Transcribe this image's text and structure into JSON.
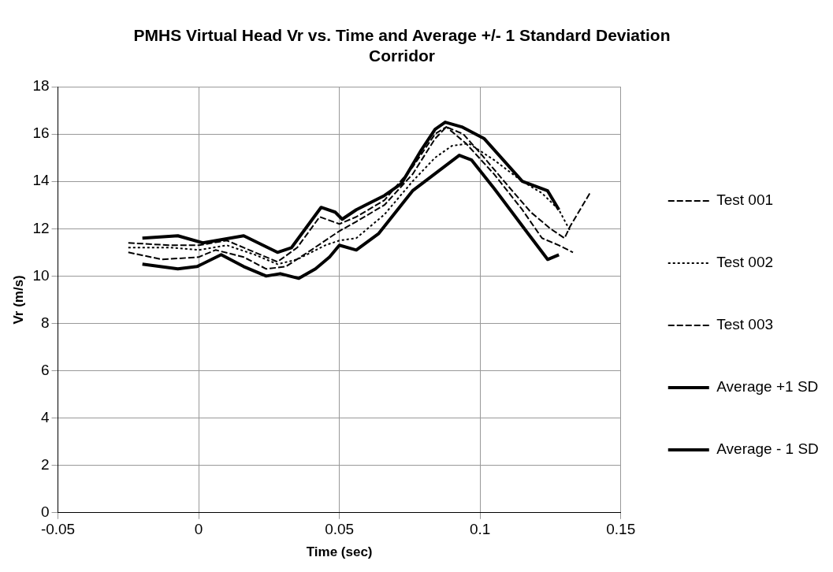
{
  "chart_data": {
    "type": "line",
    "title": "PMHS Virtual Head Vr vs. Time and Average +/- 1 Standard Deviation Corridor",
    "xlabel": "Time (sec)",
    "ylabel": "Vr (m/s)",
    "xlim": [
      -0.05,
      0.15
    ],
    "xticks": [
      -0.05,
      0,
      0.05,
      0.1,
      0.15
    ],
    "ylim": [
      0,
      18
    ],
    "yticks": [
      0,
      2,
      4,
      6,
      8,
      10,
      12,
      14,
      16,
      18
    ],
    "grid": true,
    "legend": "right",
    "marker": "none",
    "series": [
      {
        "name": "Test 001",
        "color": "#000000",
        "line_style": "dashed",
        "x": [
          -0.025,
          -0.013,
          0,
          0.006,
          0.016,
          0.024,
          0.031,
          0.04,
          0.05,
          0.056,
          0.066,
          0.076,
          0.084,
          0.088,
          0.094,
          0.1,
          0.11,
          0.118,
          0.125,
          0.13,
          0.132,
          0.139
        ],
        "values": [
          11.0,
          10.7,
          10.8,
          11.1,
          10.8,
          10.3,
          10.4,
          11.1,
          11.9,
          12.3,
          13.0,
          14.3,
          15.8,
          16.3,
          16.0,
          15.2,
          13.8,
          12.7,
          12.0,
          11.6,
          12.1,
          13.5
        ]
      },
      {
        "name": "Test 002",
        "color": "#000000",
        "line_style": "dotted",
        "x": [
          -0.025,
          -0.01,
          0,
          0.01,
          0.02,
          0.028,
          0.035,
          0.045,
          0.05,
          0.056,
          0.066,
          0.076,
          0.084,
          0.09,
          0.096,
          0.105,
          0.115,
          0.122,
          0.128,
          0.132
        ],
        "values": [
          11.2,
          11.2,
          11.1,
          11.3,
          10.9,
          10.5,
          10.7,
          11.3,
          11.5,
          11.6,
          12.6,
          14.0,
          15.0,
          15.5,
          15.6,
          14.9,
          14.0,
          13.5,
          12.8,
          11.9
        ]
      },
      {
        "name": "Test 003",
        "color": "#000000",
        "line_style": "dashed",
        "x": [
          -0.025,
          -0.01,
          0,
          0.01,
          0.02,
          0.028,
          0.035,
          0.043,
          0.05,
          0.056,
          0.066,
          0.076,
          0.084,
          0.088,
          0.095,
          0.105,
          0.115,
          0.122,
          0.128,
          0.133
        ],
        "values": [
          11.4,
          11.3,
          11.3,
          11.5,
          11.0,
          10.6,
          11.2,
          12.5,
          12.2,
          12.5,
          13.2,
          14.6,
          16.0,
          16.3,
          15.6,
          14.3,
          12.8,
          11.6,
          11.3,
          11.0
        ]
      },
      {
        "name": "Average +1 SD",
        "color": "#000000",
        "line_style": "solid",
        "x": [
          -0.02,
          -0.0074,
          0.0015,
          0.016,
          0.028,
          0.033,
          0.0435,
          0.0485,
          0.051,
          0.056,
          0.066,
          0.072,
          0.079,
          0.084,
          0.0876,
          0.0935,
          0.1015,
          0.115,
          0.124,
          0.128
        ],
        "values": [
          11.6,
          11.7,
          11.4,
          11.7,
          11.0,
          11.2,
          12.9,
          12.7,
          12.4,
          12.8,
          13.4,
          13.9,
          15.3,
          16.2,
          16.5,
          16.3,
          15.8,
          14.0,
          13.6,
          12.8
        ]
      },
      {
        "name": "Average - 1 SD",
        "color": "#000000",
        "line_style": "solid",
        "x": [
          -0.02,
          -0.0074,
          -0.0006,
          0.008,
          0.016,
          0.024,
          0.029,
          0.0356,
          0.0415,
          0.0465,
          0.05,
          0.056,
          0.064,
          0.076,
          0.0926,
          0.097,
          0.105,
          0.117,
          0.124,
          0.128
        ],
        "values": [
          10.5,
          10.3,
          10.4,
          10.9,
          10.4,
          10.0,
          10.1,
          9.9,
          10.3,
          10.8,
          11.3,
          11.1,
          11.8,
          13.6,
          15.1,
          14.9,
          13.7,
          11.8,
          10.7,
          10.9
        ]
      }
    ]
  }
}
